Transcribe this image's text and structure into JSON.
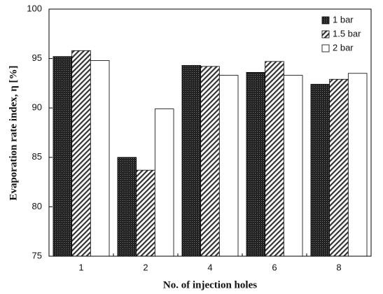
{
  "chart_data": {
    "type": "bar",
    "x_label": "No. of injection holes",
    "y_label": "Evaporation rate index, η [%]",
    "categories": [
      "1",
      "2",
      "4",
      "6",
      "8"
    ],
    "series": [
      {
        "name": "1 bar",
        "color": "#222222",
        "pattern": "dots",
        "values": [
          95.2,
          85.0,
          94.3,
          93.6,
          92.4
        ]
      },
      {
        "name": "1.5 bar",
        "color": "#333333",
        "pattern": "hatch",
        "values": [
          95.8,
          83.7,
          94.2,
          94.7,
          92.9
        ]
      },
      {
        "name": "2 bar",
        "color": "#ffffff",
        "pattern": "none",
        "values": [
          94.8,
          89.9,
          93.3,
          93.3,
          93.5
        ]
      }
    ],
    "ylim": [
      75,
      100
    ],
    "yticks": [
      75,
      80,
      85,
      90,
      95,
      100
    ],
    "grid": false,
    "legend": "upper right"
  }
}
